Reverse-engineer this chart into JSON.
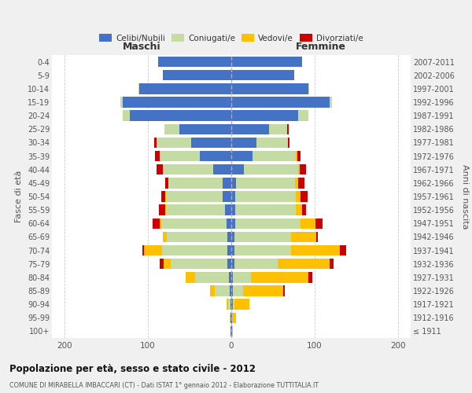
{
  "age_groups": [
    "100+",
    "95-99",
    "90-94",
    "85-89",
    "80-84",
    "75-79",
    "70-74",
    "65-69",
    "60-64",
    "55-59",
    "50-54",
    "45-49",
    "40-44",
    "35-39",
    "30-34",
    "25-29",
    "20-24",
    "15-19",
    "10-14",
    "5-9",
    "0-4"
  ],
  "birth_years": [
    "≤ 1911",
    "1912-1916",
    "1917-1921",
    "1922-1926",
    "1927-1931",
    "1932-1936",
    "1937-1941",
    "1942-1946",
    "1947-1951",
    "1952-1956",
    "1957-1961",
    "1962-1966",
    "1967-1971",
    "1972-1976",
    "1977-1981",
    "1982-1986",
    "1987-1991",
    "1992-1996",
    "1997-2001",
    "2002-2006",
    "2007-2011"
  ],
  "male": {
    "celibi": [
      1,
      1,
      1,
      2,
      3,
      5,
      5,
      5,
      6,
      8,
      10,
      10,
      22,
      38,
      48,
      62,
      122,
      130,
      110,
      82,
      88
    ],
    "coniugati": [
      0,
      1,
      3,
      18,
      40,
      68,
      78,
      72,
      78,
      70,
      68,
      65,
      60,
      48,
      42,
      18,
      8,
      3,
      1,
      0,
      0
    ],
    "vedovi": [
      0,
      0,
      2,
      5,
      12,
      8,
      22,
      5,
      2,
      1,
      1,
      0,
      0,
      0,
      0,
      0,
      0,
      0,
      0,
      0,
      0
    ],
    "divorziati": [
      0,
      0,
      0,
      0,
      0,
      5,
      2,
      0,
      8,
      8,
      5,
      4,
      8,
      5,
      2,
      0,
      0,
      0,
      0,
      0,
      0
    ]
  },
  "female": {
    "nubili": [
      1,
      1,
      2,
      2,
      2,
      4,
      4,
      4,
      5,
      5,
      5,
      6,
      15,
      25,
      30,
      45,
      80,
      118,
      92,
      75,
      85
    ],
    "coniugate": [
      0,
      0,
      2,
      12,
      22,
      52,
      68,
      68,
      78,
      72,
      72,
      70,
      65,
      52,
      38,
      22,
      12,
      3,
      1,
      0,
      0
    ],
    "vedove": [
      1,
      5,
      18,
      48,
      68,
      62,
      58,
      30,
      18,
      8,
      6,
      4,
      2,
      2,
      0,
      0,
      0,
      0,
      0,
      0,
      0
    ],
    "divorziate": [
      0,
      0,
      0,
      2,
      5,
      5,
      8,
      2,
      8,
      5,
      8,
      8,
      8,
      4,
      2,
      2,
      0,
      0,
      0,
      0,
      0
    ]
  },
  "colors": {
    "celibi": "#4472c4",
    "coniugati": "#c5dba4",
    "vedovi": "#ffc000",
    "divorziati": "#cc0000"
  },
  "xlim": 215,
  "title": "Popolazione per età, sesso e stato civile - 2012",
  "subtitle": "COMUNE DI MIRABELLA IMBACCARI (CT) - Dati ISTAT 1° gennaio 2012 - Elaborazione TUTTITALIA.IT",
  "ylabel": "Fasce di età",
  "ylabel2": "Anni di nascita",
  "xlabel_left": "Maschi",
  "xlabel_right": "Femmine",
  "bg_color": "#f0f0f0",
  "plot_bg": "#ffffff"
}
